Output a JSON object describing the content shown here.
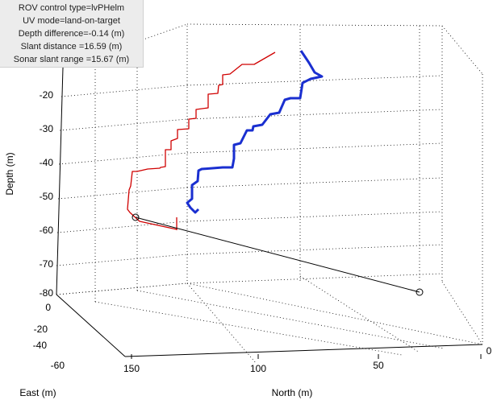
{
  "info_box": {
    "lines": [
      "ROV control type=lvPHelm",
      "UV mode=land-on-target",
      "Depth difference=-0.14 (m)",
      "Slant distance =16.59 (m)",
      "Sonar slant range =15.67 (m)"
    ]
  },
  "chart_data": {
    "type": "line3d",
    "xlabel": "East (m)",
    "ylabel": "North (m)",
    "zlabel": "Depth (m)",
    "xlim": [
      -60,
      0
    ],
    "ylim": [
      0,
      150
    ],
    "zlim": [
      -80,
      -10
    ],
    "east_ticks": [
      "0",
      "-20",
      "-40",
      "-60"
    ],
    "north_ticks": [
      "150",
      "100",
      "50",
      "0"
    ],
    "depth_ticks": [
      "-20",
      "-30",
      "-40",
      "-50",
      "-60",
      "-70",
      "-80"
    ],
    "grid": true,
    "series": [
      {
        "color": "#d00000",
        "style": "thin staircase track"
      },
      {
        "color": "#1a2fd0",
        "style": "thick staircase track"
      },
      {
        "color": "#000000",
        "style": "line between circle markers"
      }
    ]
  }
}
